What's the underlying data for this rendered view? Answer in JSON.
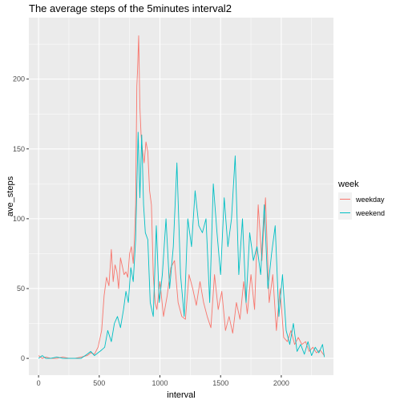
{
  "chart_data": {
    "type": "line",
    "title": "The average steps of the 5minutes interval2",
    "xlabel": "interval",
    "ylabel": "ave_steps",
    "xlim": [
      -80,
      2430
    ],
    "ylim": [
      -12,
      244
    ],
    "x_ticks": [
      0,
      500,
      1000,
      1500,
      2000
    ],
    "y_ticks": [
      0,
      50,
      100,
      150,
      200
    ],
    "grid": true,
    "legend": {
      "title": "week",
      "position": "right"
    },
    "series": [
      {
        "name": "weekday",
        "color": "#F8766D",
        "x": [
          0,
          30,
          60,
          100,
          150,
          200,
          250,
          300,
          350,
          400,
          430,
          460,
          490,
          520,
          540,
          560,
          580,
          600,
          615,
          630,
          645,
          660,
          675,
          690,
          705,
          720,
          735,
          750,
          765,
          780,
          790,
          800,
          810,
          815,
          825,
          835,
          845,
          855,
          870,
          885,
          900,
          915,
          930,
          945,
          960,
          975,
          1000,
          1030,
          1060,
          1090,
          1120,
          1150,
          1180,
          1210,
          1240,
          1270,
          1300,
          1330,
          1360,
          1390,
          1420,
          1450,
          1480,
          1510,
          1540,
          1570,
          1600,
          1630,
          1660,
          1690,
          1720,
          1750,
          1780,
          1810,
          1840,
          1870,
          1900,
          1930,
          1960,
          1990,
          2020,
          2050,
          2080,
          2110,
          2140,
          2170,
          2200,
          2230,
          2260,
          2290,
          2320,
          2355
        ],
        "values": [
          2,
          0,
          1,
          0,
          0,
          1,
          0,
          0,
          1,
          2,
          4,
          3,
          8,
          20,
          45,
          58,
          52,
          78,
          55,
          67,
          62,
          50,
          72,
          66,
          60,
          62,
          58,
          75,
          80,
          68,
          85,
          110,
          195,
          205,
          231,
          180,
          160,
          150,
          140,
          155,
          148,
          120,
          110,
          60,
          40,
          35,
          55,
          30,
          45,
          65,
          70,
          40,
          30,
          28,
          60,
          50,
          38,
          55,
          40,
          30,
          22,
          60,
          35,
          48,
          20,
          30,
          18,
          40,
          28,
          55,
          32,
          60,
          35,
          110,
          70,
          115,
          40,
          60,
          20,
          50,
          15,
          12,
          20,
          10,
          15,
          10,
          12,
          5,
          8,
          4,
          6,
          2
        ]
      },
      {
        "name": "weekend",
        "color": "#00BFC4",
        "x": [
          0,
          30,
          60,
          100,
          150,
          200,
          250,
          300,
          350,
          400,
          430,
          460,
          490,
          520,
          545,
          570,
          600,
          625,
          650,
          675,
          700,
          720,
          740,
          760,
          780,
          800,
          820,
          835,
          850,
          865,
          880,
          900,
          920,
          945,
          970,
          995,
          1020,
          1050,
          1080,
          1110,
          1140,
          1170,
          1200,
          1230,
          1260,
          1290,
          1320,
          1350,
          1380,
          1410,
          1440,
          1470,
          1500,
          1530,
          1560,
          1590,
          1620,
          1650,
          1680,
          1710,
          1740,
          1770,
          1800,
          1830,
          1860,
          1890,
          1920,
          1950,
          1980,
          2010,
          2040,
          2070,
          2100,
          2130,
          2160,
          2190,
          2220,
          2250,
          2280,
          2310,
          2340,
          2355
        ],
        "values": [
          0,
          2,
          0,
          0,
          1,
          0,
          0,
          0,
          0,
          3,
          5,
          2,
          4,
          6,
          8,
          20,
          12,
          25,
          30,
          22,
          35,
          48,
          40,
          65,
          55,
          85,
          162,
          115,
          160,
          110,
          90,
          85,
          40,
          30,
          95,
          40,
          60,
          100,
          50,
          80,
          140,
          60,
          30,
          100,
          80,
          120,
          95,
          90,
          100,
          40,
          125,
          90,
          60,
          115,
          80,
          100,
          145,
          60,
          100,
          40,
          90,
          70,
          80,
          60,
          110,
          50,
          75,
          95,
          30,
          60,
          20,
          10,
          25,
          5,
          10,
          3,
          12,
          2,
          8,
          4,
          10,
          1
        ]
      }
    ]
  }
}
